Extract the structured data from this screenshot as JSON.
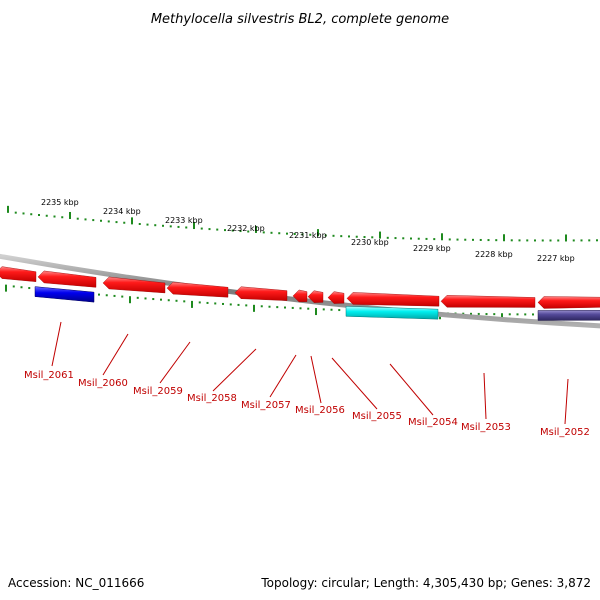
{
  "title": "Methylocella silvestris BL2, complete genome",
  "footer": {
    "accession": "Accession: NC_011666",
    "summary": "Topology: circular; Length: 4,305,430 bp; Genes: 3,872"
  },
  "colors": {
    "backbone": "#8a8a8a",
    "gene_forward": "#e60000",
    "gene_blue": "#0000dd",
    "gene_cyan": "#00e5e5",
    "gene_purple": "#4a3f8f",
    "scale_ticks": "#1e8a1e",
    "label_text": "#c00000"
  },
  "scale_labels": [
    "2235 kbp",
    "2234 kbp",
    "2233 kbp",
    "2232 kbp",
    "2231 kbp",
    "2230 kbp",
    "2229 kbp",
    "2228 kbp",
    "2227 kbp"
  ],
  "genes": [
    {
      "label": "Msil_2061"
    },
    {
      "label": "Msil_2060"
    },
    {
      "label": "Msil_2059"
    },
    {
      "label": "Msil_2058"
    },
    {
      "label": "Msil_2057"
    },
    {
      "label": "Msil_2056"
    },
    {
      "label": "Msil_2055"
    },
    {
      "label": "Msil_2054"
    },
    {
      "label": "Msil_2053"
    },
    {
      "label": "Msil_2052"
    }
  ]
}
